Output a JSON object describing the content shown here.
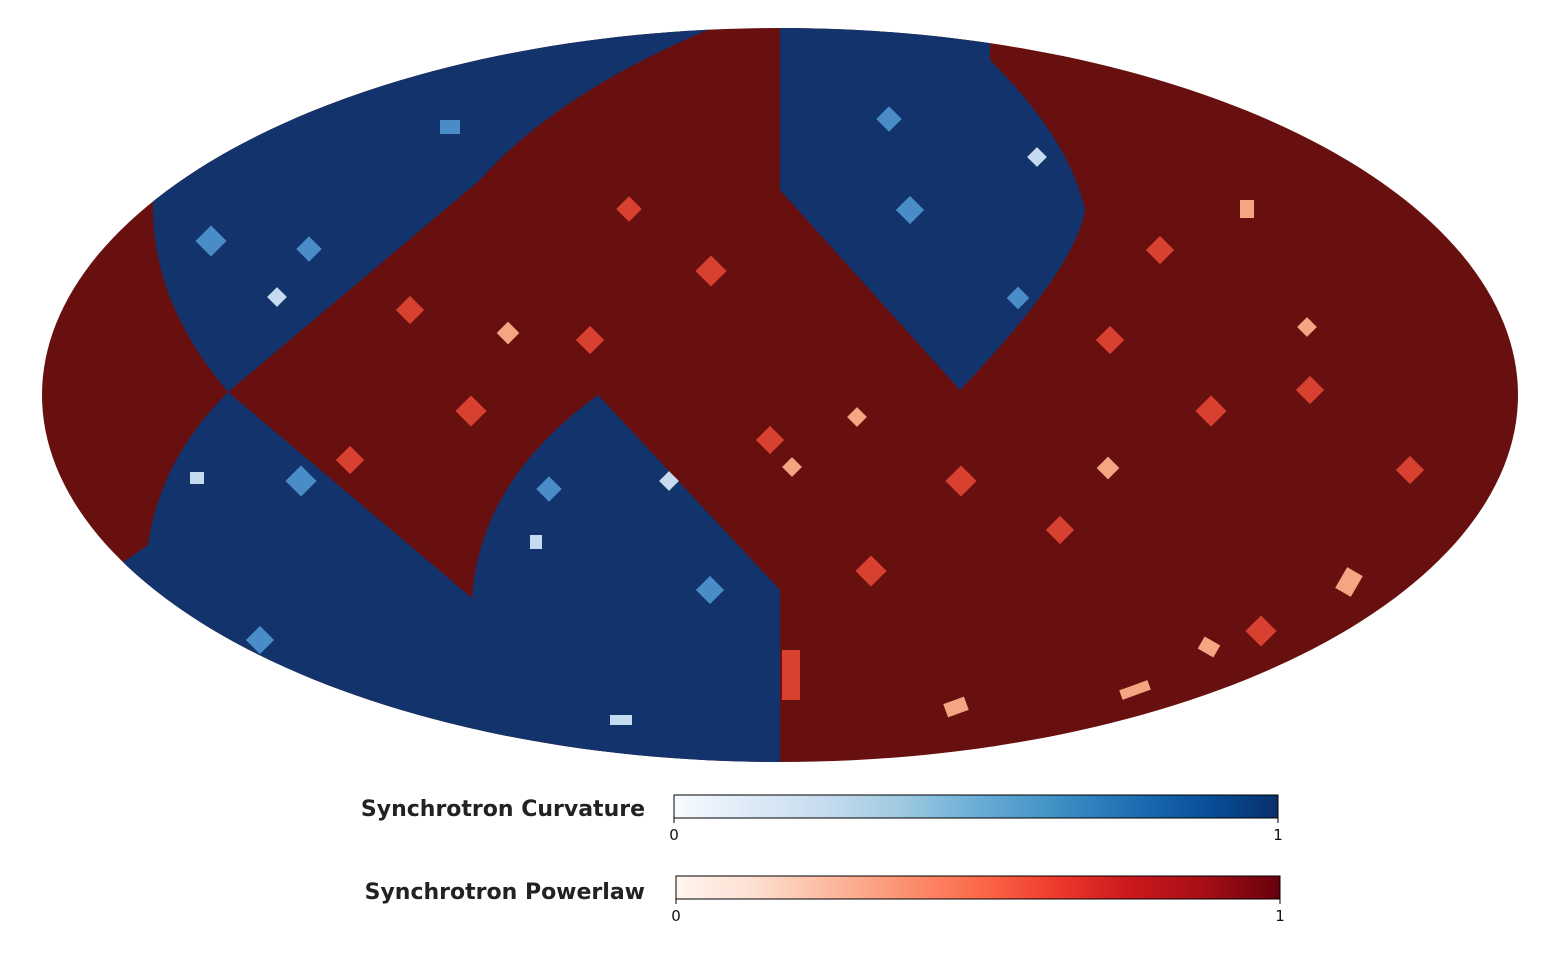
{
  "colorbars": [
    {
      "label": "Synchrotron Curvature",
      "ticks": [
        0,
        1
      ],
      "colors": [
        "#f7fbff",
        "#deebf7",
        "#c6dbef",
        "#9ecae1",
        "#6baed6",
        "#4292c6",
        "#2171b5",
        "#08519c",
        "#08306b"
      ]
    },
    {
      "label": "Synchrotron Powerlaw",
      "ticks": [
        0,
        1
      ],
      "colors": [
        "#fff5f0",
        "#fee0d2",
        "#fcbba1",
        "#fc9272",
        "#fb6a4a",
        "#ef3b2c",
        "#cb181d",
        "#a50f15",
        "#67000d"
      ]
    }
  ]
}
